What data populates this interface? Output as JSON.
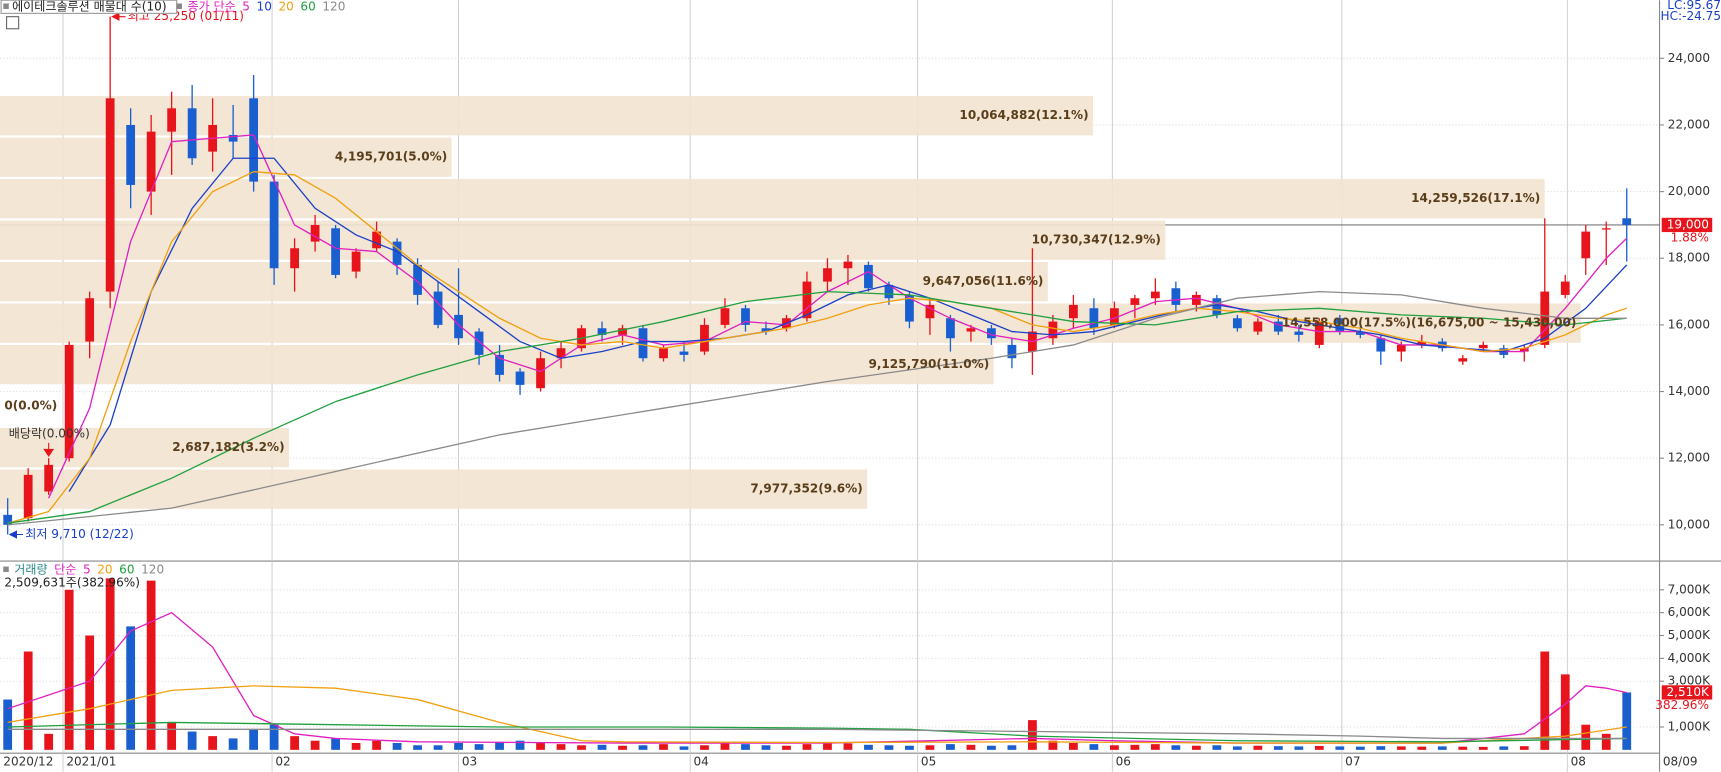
{
  "chart_data": [
    {
      "type": "candlestick",
      "title": "에이테크솔루션 매물대 수(10)",
      "legend_title": "종가 단순",
      "up_color": "#e8141c",
      "down_color": "#1a5fd0",
      "corner_texts": [
        "LC:95.67",
        "HC:-24.75"
      ],
      "ylim": [
        8946,
        25744
      ],
      "yticks": [
        {
          "value": 10000,
          "label": "10,000"
        },
        {
          "value": 12000,
          "label": "12,000"
        },
        {
          "value": 14000,
          "label": "14,000"
        },
        {
          "value": 16000,
          "label": "16,000"
        },
        {
          "value": 18000,
          "label": "18,000"
        },
        {
          "value": 20000,
          "label": "20,000"
        },
        {
          "value": 22000,
          "label": "22,000"
        },
        {
          "value": 24000,
          "label": "24,000"
        }
      ],
      "open": [
        10300,
        10200,
        11000,
        12000,
        15500,
        17000,
        22000,
        20000,
        21800,
        22500,
        21200,
        21700,
        22800,
        20300,
        17700,
        18500,
        18900,
        17600,
        18300,
        18500,
        17800,
        17000,
        16300,
        15800,
        15100,
        14600,
        14100,
        15000,
        15300,
        15900,
        15700,
        15900,
        15000,
        15200,
        15200,
        16000,
        16500,
        15900,
        15900,
        16200,
        17300,
        17700,
        17800,
        17200,
        16900,
        16200,
        16200,
        15800,
        15900,
        15400,
        15200,
        15600,
        16200,
        16500,
        16000,
        16600,
        16800,
        17100,
        16600,
        16800,
        16200,
        15800,
        16100,
        15800,
        15400,
        16200,
        15800,
        15600,
        15200,
        15400,
        15500,
        14900,
        15300,
        15300,
        15200,
        15400,
        16900,
        18000,
        18900,
        19200
      ],
      "high": [
        10800,
        11700,
        12000,
        15500,
        17000,
        25250,
        22500,
        22300,
        23000,
        23200,
        22800,
        22600,
        23500,
        20500,
        18600,
        19300,
        19000,
        18300,
        19100,
        18600,
        18000,
        17300,
        17700,
        15900,
        15400,
        14700,
        15200,
        15500,
        16000,
        16100,
        16000,
        16000,
        15400,
        15500,
        16200,
        16800,
        16600,
        16100,
        16300,
        17600,
        18000,
        18100,
        17900,
        17300,
        17000,
        16800,
        16300,
        16000,
        16000,
        15600,
        18300,
        16300,
        16900,
        16800,
        16700,
        16900,
        17400,
        17300,
        17000,
        16900,
        16300,
        16200,
        16300,
        16000,
        16200,
        16300,
        16000,
        15700,
        15500,
        15700,
        15600,
        15100,
        15500,
        15400,
        15400,
        19200,
        17500,
        19000,
        19100,
        20100
      ],
      "low": [
        9710,
        10100,
        10900,
        11900,
        15000,
        16500,
        19500,
        19300,
        20500,
        20800,
        20600,
        21000,
        20000,
        17200,
        17000,
        18200,
        17400,
        17400,
        18200,
        17500,
        16600,
        15900,
        15400,
        14800,
        14300,
        13900,
        14000,
        14700,
        15200,
        15500,
        15400,
        14900,
        14900,
        14900,
        15100,
        15900,
        15800,
        15700,
        15800,
        16100,
        17000,
        17200,
        17000,
        16600,
        15900,
        15700,
        15200,
        15500,
        15400,
        14700,
        14500,
        15400,
        15900,
        15700,
        15900,
        16200,
        16600,
        16400,
        16400,
        16200,
        15800,
        15700,
        15700,
        15500,
        15300,
        15700,
        15600,
        14800,
        14900,
        15300,
        15200,
        14800,
        15200,
        15000,
        14900,
        15300,
        16800,
        17500,
        17800,
        17900
      ],
      "close": [
        10000,
        11500,
        11800,
        15400,
        16800,
        22800,
        20200,
        21800,
        22500,
        21000,
        22000,
        21500,
        20300,
        17700,
        18300,
        19000,
        17500,
        18200,
        18800,
        17800,
        16900,
        16000,
        15600,
        15100,
        14500,
        14200,
        15000,
        15300,
        15900,
        15700,
        15900,
        15000,
        15300,
        15100,
        16000,
        16500,
        16000,
        15800,
        16200,
        17300,
        17700,
        17900,
        17100,
        16800,
        16100,
        16600,
        15600,
        15900,
        15600,
        15000,
        15800,
        16100,
        16600,
        15900,
        16500,
        16800,
        17000,
        16600,
        16900,
        16300,
        15900,
        16100,
        15800,
        15700,
        16100,
        15800,
        15700,
        15200,
        15400,
        15500,
        15300,
        15000,
        15400,
        15100,
        15300,
        17000,
        17300,
        18800,
        18900,
        19000
      ],
      "ma": [
        {
          "name": "5",
          "color": "#e020c0",
          "x": [
            2,
            4,
            6,
            8,
            10,
            12,
            14,
            16,
            18,
            20,
            22,
            24,
            26,
            28,
            30,
            32,
            34,
            36,
            38,
            40,
            42,
            44,
            46,
            48,
            50,
            52,
            54,
            56,
            58,
            60,
            62,
            64,
            66,
            68,
            70,
            72,
            74,
            76,
            78,
            79
          ],
          "values": [
            10800,
            13500,
            18500,
            21500,
            21600,
            21700,
            19000,
            18300,
            18200,
            17300,
            16000,
            15000,
            14600,
            15400,
            15700,
            15400,
            15500,
            16100,
            16000,
            17000,
            17600,
            16800,
            16200,
            15700,
            15500,
            15900,
            16200,
            16700,
            16800,
            16500,
            16000,
            15800,
            15800,
            15400,
            15400,
            15200,
            15200,
            16500,
            18000,
            18600
          ]
        },
        {
          "name": "10",
          "color": "#1a3fc8",
          "x": [
            3,
            5,
            7,
            9,
            11,
            13,
            15,
            17,
            19,
            21,
            23,
            25,
            27,
            29,
            31,
            33,
            35,
            37,
            39,
            41,
            43,
            45,
            47,
            49,
            51,
            53,
            55,
            57,
            59,
            61,
            63,
            65,
            67,
            69,
            71,
            73,
            75,
            77,
            79
          ],
          "values": [
            11000,
            13000,
            17000,
            19500,
            21000,
            21000,
            19500,
            18700,
            18200,
            17300,
            16400,
            15500,
            15000,
            15200,
            15500,
            15500,
            15600,
            15800,
            16300,
            16900,
            17200,
            16800,
            16300,
            15800,
            15700,
            15800,
            16100,
            16400,
            16600,
            16400,
            16100,
            15900,
            15700,
            15400,
            15300,
            15200,
            15600,
            16500,
            17800
          ]
        },
        {
          "name": "20",
          "color": "#f0a010",
          "x": [
            0,
            2,
            4,
            6,
            8,
            10,
            12,
            14,
            16,
            18,
            20,
            22,
            24,
            26,
            28,
            30,
            32,
            34,
            36,
            38,
            40,
            42,
            44,
            46,
            48,
            50,
            52,
            54,
            56,
            58,
            60,
            62,
            64,
            66,
            68,
            70,
            72,
            74,
            76,
            78,
            79
          ],
          "values": [
            10050,
            10400,
            12000,
            15500,
            18500,
            20000,
            20600,
            20500,
            19800,
            18800,
            17800,
            17000,
            16200,
            15600,
            15400,
            15500,
            15300,
            15500,
            15700,
            15900,
            16200,
            16600,
            16800,
            16700,
            16500,
            16000,
            15800,
            16000,
            16300,
            16500,
            16400,
            16200,
            16100,
            15900,
            15600,
            15400,
            15200,
            15300,
            15700,
            16300,
            16500
          ]
        },
        {
          "name": "60",
          "color": "#20a040",
          "x": [
            0,
            4,
            8,
            12,
            16,
            20,
            24,
            28,
            32,
            36,
            40,
            44,
            48,
            52,
            56,
            60,
            64,
            68,
            72,
            76,
            79
          ],
          "values": [
            10050,
            10400,
            11400,
            12600,
            13700,
            14500,
            15200,
            15600,
            16100,
            16700,
            17000,
            16900,
            16500,
            16100,
            16000,
            16400,
            16500,
            16300,
            16200,
            16000,
            16200
          ]
        },
        {
          "name": "120",
          "color": "#8a8a8a",
          "x": [
            0,
            8,
            16,
            24,
            32,
            40,
            48,
            52,
            56,
            60,
            64,
            68,
            72,
            76,
            79
          ],
          "values": [
            10000,
            10500,
            11600,
            12700,
            13500,
            14300,
            15000,
            15400,
            16200,
            16800,
            17000,
            16900,
            16500,
            16200,
            16200
          ]
        }
      ],
      "bands": [
        {
          "label": "10,064,882(12.1%)",
          "share": 12.1,
          "range": [
            21655,
            22900
          ]
        },
        {
          "label": "4,195,701(5.0%)",
          "share": 5.0,
          "range": [
            20410,
            21655
          ]
        },
        {
          "label": "14,259,526(17.1%)",
          "share": 17.1,
          "range": [
            19165,
            20410
          ]
        },
        {
          "label": "10,730,347(12.9%)",
          "share": 12.9,
          "range": [
            17920,
            19165
          ]
        },
        {
          "label": "9,647,056(11.6%)",
          "share": 11.6,
          "range": [
            16675,
            17920
          ]
        },
        {
          "label": "14,558,000(17.5%)(16,675,00 ~ 15,430,00)",
          "share": 17.5,
          "range": [
            15430,
            16675
          ]
        },
        {
          "label": "9,125,790(11.0%)",
          "share": 11.0,
          "range": [
            14185,
            15430
          ]
        },
        {
          "label": "0(0.0%)",
          "share": 0.0,
          "range": [
            12940,
            14185
          ]
        },
        {
          "label": "2,687,182(3.2%)",
          "share": 3.2,
          "range": [
            11695,
            12940
          ]
        },
        {
          "label": "7,977,352(9.6%)",
          "share": 9.6,
          "range": [
            10450,
            11695
          ]
        }
      ],
      "annotations": [
        {
          "text": "최고 25,250 (01/11)",
          "value": 25250,
          "index": 5,
          "color": "#e8141c"
        },
        {
          "text": "최저 9,710 (12/22)",
          "value": 9710,
          "index": 0,
          "color": "#1a3fc8"
        },
        {
          "text": "배당락(0.00%)",
          "index": 2,
          "color": "#333333"
        }
      ],
      "current": {
        "value": 19000,
        "label": "19,000",
        "change": "1.88%"
      }
    },
    {
      "type": "bar",
      "label": "거래량",
      "legend_title": "단순",
      "summary": "2,509,631주(382.96%)",
      "ylim": [
        -144,
        8208
      ],
      "yticks": [
        {
          "value": 1000,
          "label": "1,000K"
        },
        {
          "value": 3000,
          "label": "3,000K"
        },
        {
          "value": 4000,
          "label": "4,000K"
        },
        {
          "value": 5000,
          "label": "5,000K"
        },
        {
          "value": 6000,
          "label": "6,000K"
        },
        {
          "value": 7000,
          "label": "7,000K"
        }
      ],
      "xlim": [
        -0.375,
        80.6
      ],
      "xticks": [
        {
          "value": -0.375,
          "label": "2020/12"
        },
        {
          "value": 2.7,
          "label": "2021/01"
        },
        {
          "value": 12.9,
          "label": "02"
        },
        {
          "value": 22,
          "label": "03"
        },
        {
          "value": 33.3,
          "label": "04"
        },
        {
          "value": 44.4,
          "label": "05"
        },
        {
          "value": 53.9,
          "label": "06"
        },
        {
          "value": 65.1,
          "label": "07"
        },
        {
          "value": 76.1,
          "label": "08"
        },
        {
          "value": 80.6,
          "label": "08/09"
        }
      ],
      "values": [
        2200,
        4300,
        700,
        7000,
        5000,
        7500,
        5400,
        7400,
        1200,
        800,
        600,
        500,
        900,
        1100,
        600,
        400,
        500,
        300,
        400,
        300,
        200,
        200,
        300,
        250,
        350,
        400,
        300,
        250,
        200,
        220,
        180,
        200,
        250,
        150,
        200,
        300,
        250,
        200,
        180,
        250,
        300,
        280,
        220,
        200,
        180,
        200,
        250,
        220,
        180,
        200,
        1300,
        400,
        300,
        250,
        200,
        220,
        250,
        200,
        180,
        200,
        150,
        180,
        160,
        150,
        170,
        150,
        140,
        160,
        150,
        140,
        150,
        140,
        130,
        150,
        160,
        4300,
        3300,
        1100,
        700,
        2510
      ],
      "ma": [
        {
          "name": "5",
          "color": "#e020c0",
          "x": [
            0,
            2,
            4,
            6,
            8,
            10,
            12,
            14,
            16,
            20,
            30,
            40,
            50,
            54,
            60,
            70,
            74,
            76,
            77,
            78,
            79
          ],
          "values": [
            1800,
            2400,
            3000,
            5200,
            6000,
            4500,
            1500,
            700,
            500,
            350,
            300,
            300,
            500,
            400,
            300,
            300,
            700,
            2000,
            2800,
            2700,
            2500
          ]
        },
        {
          "name": "20",
          "color": "#f0a010",
          "x": [
            0,
            4,
            8,
            12,
            16,
            20,
            24,
            28,
            30,
            40,
            50,
            60,
            70,
            76,
            79
          ],
          "values": [
            1200,
            1800,
            2600,
            2800,
            2700,
            2200,
            1200,
            400,
            350,
            320,
            350,
            300,
            300,
            600,
            1000
          ]
        },
        {
          "name": "60",
          "color": "#20a040",
          "x": [
            0,
            8,
            16,
            24,
            32,
            40,
            44,
            50,
            60,
            70,
            79
          ],
          "values": [
            1000,
            1200,
            1100,
            1000,
            1000,
            950,
            900,
            600,
            400,
            350,
            500
          ]
        },
        {
          "name": "120",
          "color": "#8a8a8a",
          "x": [
            0,
            40,
            50,
            60,
            66,
            70,
            79
          ],
          "values": [
            900,
            900,
            800,
            700,
            600,
            500,
            500
          ]
        }
      ],
      "current": {
        "value": 2510,
        "label": "2,510K",
        "change": "382.96%"
      }
    }
  ]
}
